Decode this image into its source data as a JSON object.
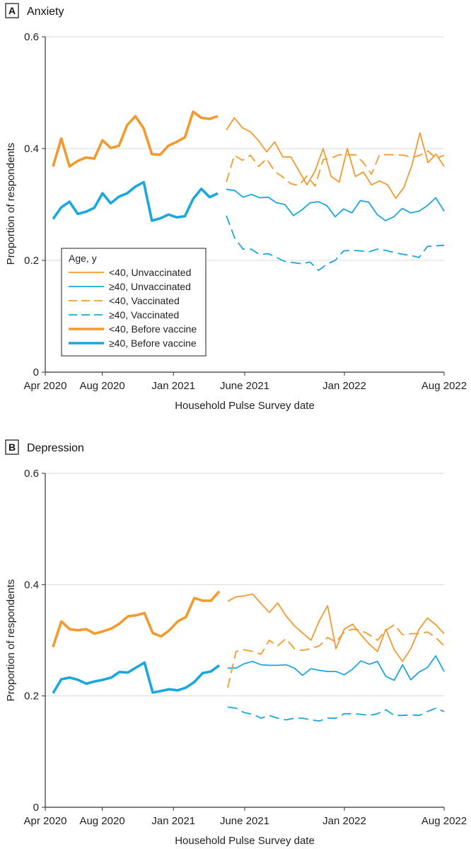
{
  "colors": {
    "orange": "#f39a2e",
    "blue": "#1aa7e0",
    "grid": "#d9d9d9",
    "axis": "#333333"
  },
  "legend": {
    "title": "Age, y",
    "entries": [
      {
        "label": "<40, Unvaccinated",
        "color": "orange",
        "style": "solid"
      },
      {
        "label": "≥40, Unvaccinated",
        "color": "blue",
        "style": "solid"
      },
      {
        "label": "<40, Vaccinated",
        "color": "orange",
        "style": "dashed"
      },
      {
        "label": "≥40, Vaccinated",
        "color": "blue",
        "style": "dashed"
      },
      {
        "label": "<40, Before vaccine",
        "color": "orange",
        "style": "thick"
      },
      {
        "label": "≥40, Before vaccine",
        "color": "blue",
        "style": "thick"
      }
    ]
  },
  "chart_data": [
    {
      "type": "line",
      "panel_letter": "A",
      "title": "Anxiety",
      "xlabel": "Household Pulse Survey date",
      "ylabel": "Proportion of respondents",
      "ylim": [
        0,
        0.6
      ],
      "yticks": [
        "0",
        "0.2",
        "0.4",
        "0.6"
      ],
      "yticks_values": [
        0,
        0.2,
        0.4,
        0.6
      ],
      "xticks": [
        "Apr 2020",
        "Aug 2020",
        "Jan 2021",
        "June 2021",
        "Jan 2022",
        "Aug 2022"
      ],
      "xticks_values": [
        "2020-04",
        "2020-08",
        "2021-01",
        "2021-06",
        "2022-01",
        "2022-08"
      ],
      "grid": true,
      "legend_position": "bottom-left",
      "series": [
        {
          "name": "<40, Before vaccine",
          "color": "orange",
          "style": "thick",
          "values": [
            0.368,
            0.418,
            0.368,
            0.378,
            0.384,
            0.382,
            0.415,
            0.401,
            0.405,
            0.442,
            0.458,
            0.436,
            0.39,
            0.389,
            0.405,
            0.412,
            0.42,
            0.466,
            0.455,
            0.453,
            0.458
          ]
        },
        {
          "name": "≥40, Before vaccine",
          "color": "blue",
          "style": "thick",
          "values": [
            0.274,
            0.295,
            0.305,
            0.283,
            0.287,
            0.294,
            0.32,
            0.302,
            0.314,
            0.32,
            0.332,
            0.34,
            0.271,
            0.275,
            0.282,
            0.277,
            0.279,
            0.31,
            0.328,
            0.313,
            0.32
          ]
        },
        {
          "name": "<40, Unvaccinated",
          "color": "orange",
          "style": "solid",
          "values": [
            0.433,
            0.455,
            0.437,
            0.43,
            0.414,
            0.394,
            0.412,
            0.385,
            0.385,
            0.36,
            0.335,
            0.36,
            0.4,
            0.35,
            0.34,
            0.4,
            0.35,
            0.358,
            0.335,
            0.342,
            0.335,
            0.311,
            0.33,
            0.37,
            0.428,
            0.375,
            0.39,
            0.368
          ]
        },
        {
          "name": "≥40, Unvaccinated",
          "color": "blue",
          "style": "solid",
          "values": [
            0.327,
            0.325,
            0.313,
            0.318,
            0.312,
            0.313,
            0.303,
            0.3,
            0.28,
            0.29,
            0.303,
            0.305,
            0.298,
            0.278,
            0.292,
            0.285,
            0.307,
            0.304,
            0.282,
            0.271,
            0.278,
            0.293,
            0.285,
            0.288,
            0.298,
            0.312,
            0.288
          ]
        },
        {
          "name": "<40, Vaccinated",
          "color": "orange",
          "style": "dashed",
          "values": [
            0.34,
            0.388,
            0.379,
            0.388,
            0.368,
            0.382,
            0.359,
            0.349,
            0.337,
            0.334,
            0.351,
            0.333,
            0.38,
            0.383,
            0.389,
            0.389,
            0.389,
            0.375,
            0.354,
            0.389,
            0.389,
            0.389,
            0.388,
            0.384,
            0.388,
            0.396,
            0.382,
            0.388
          ]
        },
        {
          "name": "≥40, Vaccinated",
          "color": "blue",
          "style": "dashed",
          "values": [
            0.28,
            0.24,
            0.22,
            0.22,
            0.21,
            0.212,
            0.205,
            0.198,
            0.196,
            0.194,
            0.197,
            0.182,
            0.193,
            0.2,
            0.217,
            0.218,
            0.217,
            0.215,
            0.22,
            0.218,
            0.214,
            0.211,
            0.209,
            0.205,
            0.225,
            0.226,
            0.227
          ]
        }
      ]
    },
    {
      "type": "line",
      "panel_letter": "B",
      "title": "Depression",
      "xlabel": "Household Pulse Survey date",
      "ylabel": "Proportion of respondents",
      "ylim": [
        0,
        0.6
      ],
      "yticks": [
        "0",
        "0.2",
        "0.4",
        "0.6"
      ],
      "yticks_values": [
        0,
        0.2,
        0.4,
        0.6
      ],
      "xticks": [
        "Apr 2020",
        "Aug 2020",
        "Jan 2021",
        "June 2021",
        "Jan 2022",
        "Aug 2022"
      ],
      "xticks_values": [
        "2020-04",
        "2020-08",
        "2021-01",
        "2021-06",
        "2022-01",
        "2022-08"
      ],
      "grid": true,
      "series": [
        {
          "name": "<40, Before vaccine",
          "color": "orange",
          "style": "thick",
          "values": [
            0.288,
            0.334,
            0.32,
            0.318,
            0.32,
            0.312,
            0.316,
            0.321,
            0.33,
            0.343,
            0.345,
            0.349,
            0.313,
            0.307,
            0.318,
            0.334,
            0.342,
            0.376,
            0.371,
            0.371,
            0.388
          ]
        },
        {
          "name": "≥40, Before vaccine",
          "color": "blue",
          "style": "thick",
          "values": [
            0.205,
            0.23,
            0.233,
            0.229,
            0.222,
            0.226,
            0.229,
            0.233,
            0.243,
            0.242,
            0.251,
            0.26,
            0.206,
            0.209,
            0.212,
            0.21,
            0.215,
            0.225,
            0.241,
            0.244,
            0.255
          ]
        },
        {
          "name": "<40, Unvaccinated",
          "color": "orange",
          "style": "solid",
          "values": [
            0.37,
            0.378,
            0.38,
            0.383,
            0.366,
            0.35,
            0.367,
            0.344,
            0.326,
            0.313,
            0.3,
            0.335,
            0.362,
            0.285,
            0.32,
            0.329,
            0.31,
            0.293,
            0.28,
            0.32,
            0.283,
            0.262,
            0.285,
            0.32,
            0.34,
            0.328,
            0.312
          ]
        },
        {
          "name": "≥40, Unvaccinated",
          "color": "blue",
          "style": "solid",
          "values": [
            0.25,
            0.25,
            0.258,
            0.262,
            0.256,
            0.255,
            0.255,
            0.256,
            0.25,
            0.237,
            0.249,
            0.246,
            0.244,
            0.244,
            0.238,
            0.248,
            0.263,
            0.257,
            0.262,
            0.235,
            0.228,
            0.256,
            0.229,
            0.243,
            0.251,
            0.272,
            0.244
          ]
        },
        {
          "name": "<40, Vaccinated",
          "color": "orange",
          "style": "dashed",
          "values": [
            0.215,
            0.28,
            0.283,
            0.28,
            0.275,
            0.3,
            0.29,
            0.303,
            0.285,
            0.282,
            0.285,
            0.29,
            0.305,
            0.297,
            0.315,
            0.32,
            0.318,
            0.31,
            0.3,
            0.318,
            0.328,
            0.31,
            0.312,
            0.312,
            0.315,
            0.305,
            0.29
          ]
        },
        {
          "name": "≥40, Vaccinated",
          "color": "blue",
          "style": "dashed",
          "values": [
            0.18,
            0.178,
            0.17,
            0.167,
            0.16,
            0.165,
            0.16,
            0.157,
            0.16,
            0.16,
            0.157,
            0.155,
            0.16,
            0.16,
            0.168,
            0.168,
            0.167,
            0.165,
            0.168,
            0.175,
            0.165,
            0.165,
            0.166,
            0.165,
            0.172,
            0.178,
            0.172
          ]
        }
      ]
    }
  ]
}
